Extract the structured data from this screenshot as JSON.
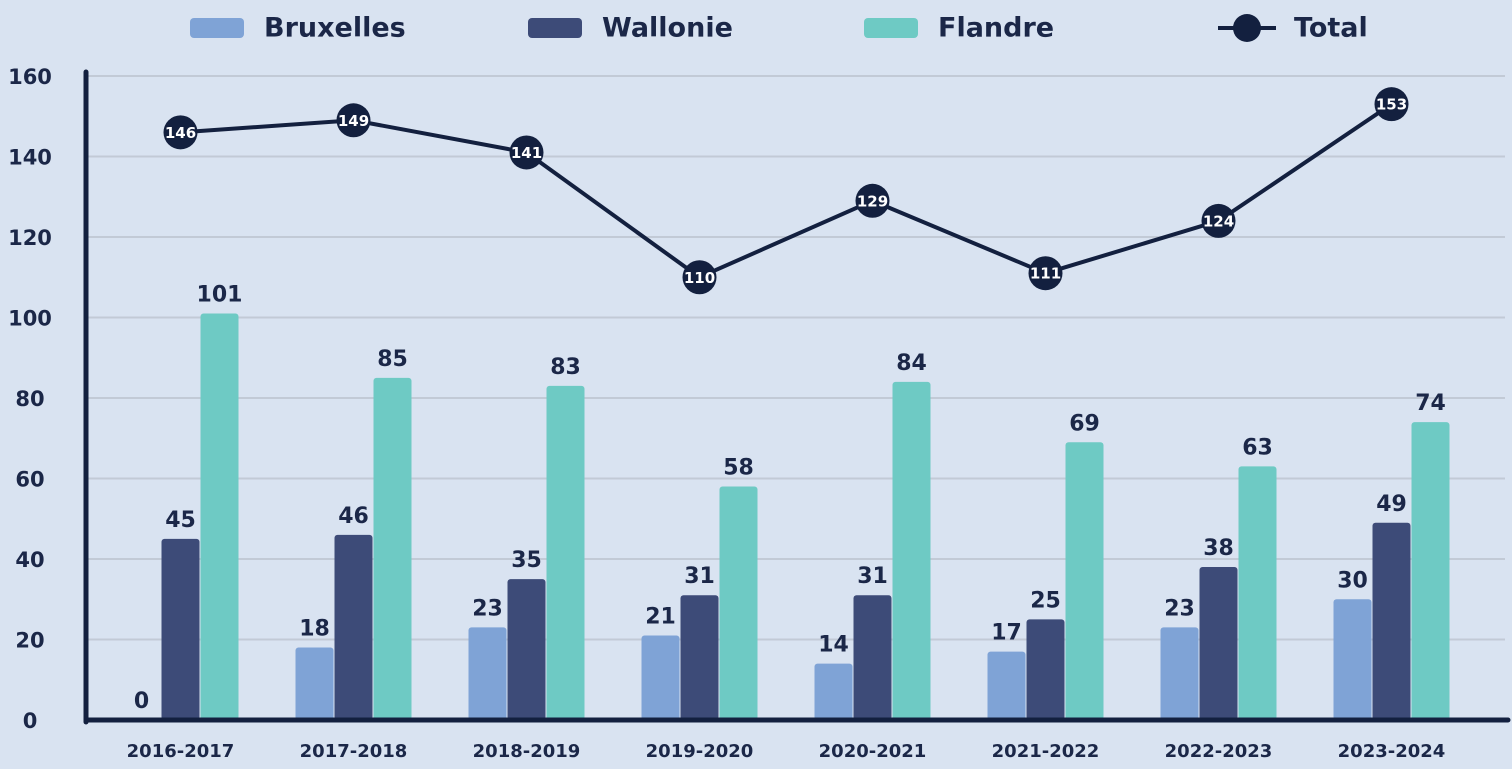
{
  "chart_data": {
    "type": "bar",
    "categories": [
      "2016-2017",
      "2017-2018",
      "2018-2019",
      "2019-2020",
      "2020-2021",
      "2021-2022",
      "2022-2023",
      "2023-2024"
    ],
    "series": [
      {
        "name": "Bruxelles",
        "color": "#7fa3d6",
        "values": [
          0,
          18,
          23,
          21,
          14,
          17,
          23,
          30
        ]
      },
      {
        "name": "Wallonie",
        "color": "#3d4b78",
        "values": [
          45,
          46,
          35,
          31,
          31,
          25,
          38,
          49
        ]
      },
      {
        "name": "Flandre",
        "color": "#6ecac4",
        "values": [
          101,
          85,
          83,
          58,
          84,
          69,
          63,
          74
        ]
      },
      {
        "name": "Total",
        "type": "line",
        "color": "#13203f",
        "values": [
          146,
          149,
          141,
          110,
          129,
          111,
          124,
          153
        ]
      }
    ],
    "ylim": [
      0,
      160
    ],
    "yticks": [
      0,
      20,
      40,
      60,
      80,
      100,
      120,
      140,
      160
    ],
    "grid": true,
    "legend": "top"
  }
}
